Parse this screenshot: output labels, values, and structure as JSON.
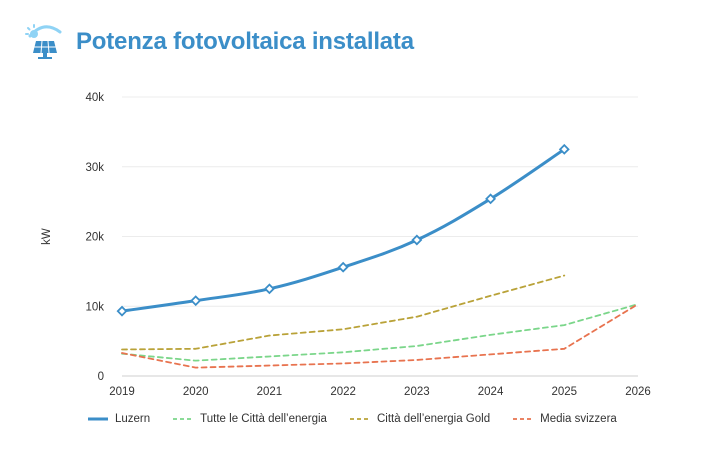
{
  "header": {
    "title": "Potenza fotovoltaica installata",
    "icon": "solar-panel-sun-icon"
  },
  "colors": {
    "title": "#3b8ec8",
    "icon_blue": "#3b8ec8",
    "icon_sun": "#8fd3f5"
  },
  "chart_data": {
    "type": "line",
    "title": "Potenza fotovoltaica installata",
    "ylabel": "kW",
    "xlabel": "",
    "x": [
      2019,
      2020,
      2021,
      2022,
      2023,
      2024,
      2025,
      2026
    ],
    "x_tick_labels": [
      "2019",
      "2020",
      "2021",
      "2022",
      "2023",
      "2024",
      "2025",
      "2026"
    ],
    "ylim": [
      0,
      40000
    ],
    "y_ticks": [
      0,
      10000,
      20000,
      30000,
      40000
    ],
    "y_tick_labels": [
      "0",
      "10k",
      "20k",
      "30k",
      "40k"
    ],
    "grid": true,
    "legend_position": "bottom-left",
    "series": [
      {
        "name": "Luzern",
        "color": "#3b8ec8",
        "style": "solid",
        "markers": true,
        "x": [
          2019,
          2020,
          2021,
          2022,
          2023,
          2024,
          2025
        ],
        "values": [
          9300,
          10800,
          12500,
          15600,
          19500,
          25400,
          32500
        ]
      },
      {
        "name": "Tutte le Città dell’energia",
        "color": "#7bd68a",
        "style": "dashed",
        "markers": false,
        "x": [
          2019,
          2020,
          2021,
          2022,
          2023,
          2024,
          2025,
          2026
        ],
        "values": [
          3200,
          2200,
          2800,
          3400,
          4300,
          5900,
          7300,
          10300
        ]
      },
      {
        "name": "Città dell’energia Gold",
        "color": "#b9a238",
        "style": "dashed",
        "markers": false,
        "x": [
          2019,
          2020,
          2021,
          2022,
          2023,
          2024,
          2025
        ],
        "values": [
          3800,
          3900,
          5800,
          6700,
          8500,
          11500,
          14400
        ]
      },
      {
        "name": "Media svizzera",
        "color": "#e8734f",
        "style": "dashed",
        "markers": false,
        "x": [
          2019,
          2020,
          2021,
          2022,
          2023,
          2024,
          2025,
          2026
        ],
        "values": [
          3300,
          1200,
          1500,
          1800,
          2300,
          3100,
          3900,
          10300
        ]
      }
    ]
  }
}
